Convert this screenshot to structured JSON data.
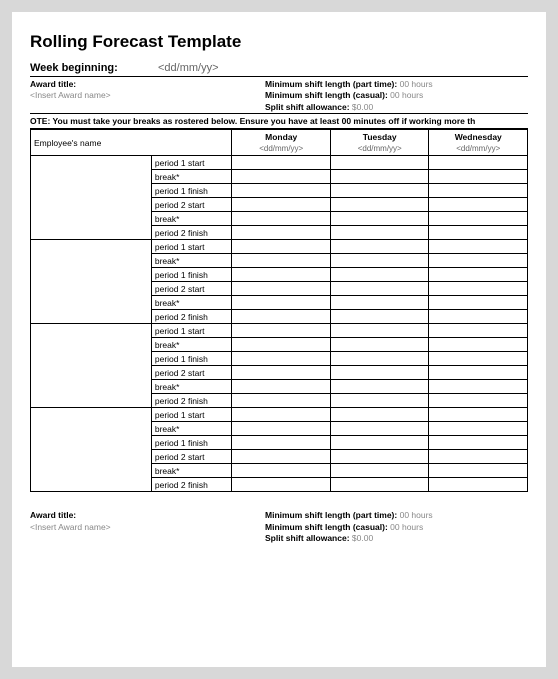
{
  "title": "Rolling Forecast Template",
  "week": {
    "label": "Week beginning:",
    "value": "<dd/mm/yy>"
  },
  "award": {
    "title_label": "Award title:",
    "title_value": "<Insert Award name>",
    "min_shift_part_label": "Minimum shift length (part time):",
    "min_shift_part_value": "00 hours",
    "min_shift_casual_label": "Minimum shift length (casual):",
    "min_shift_casual_value": "00 hours",
    "split_label": "Split shift allowance:",
    "split_value": "$0.00"
  },
  "note": "OTE: You must take your breaks as rostered below. Ensure you have at least 00 minutes off if working more th",
  "schedule": {
    "headers": {
      "employee": "Employee's name",
      "days": [
        {
          "name": "Monday",
          "fmt": "<dd/mm/yy>"
        },
        {
          "name": "Tuesday",
          "fmt": "<dd/mm/yy>"
        },
        {
          "name": "Wednesday",
          "fmt": "<dd/mm/yy>"
        }
      ]
    },
    "period_labels": [
      "period 1 start",
      "break*",
      "period 1 finish",
      "period 2 start",
      "break*",
      "period 2 finish"
    ],
    "employee_count": 4
  },
  "colors": {
    "page_bg": "#ffffff",
    "body_bg": "#d8d8d8",
    "text": "#000000",
    "muted": "#888888",
    "highlight": "#cc0000"
  }
}
